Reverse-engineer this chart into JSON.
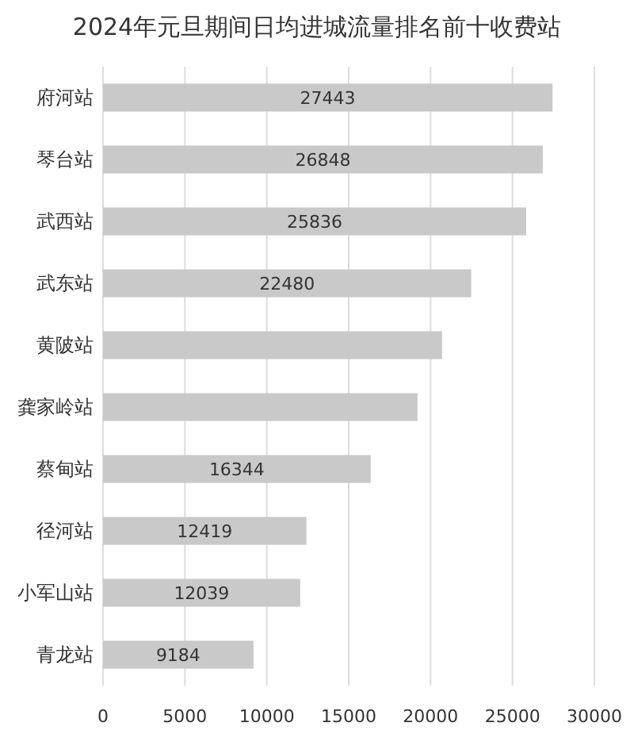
{
  "chart_data": {
    "type": "bar",
    "orientation": "horizontal",
    "title": "2024年元旦期间日均进城流量排名前十收费站",
    "categories": [
      "府河站",
      "琴台站",
      "武西站",
      "武东站",
      "黄陂站",
      "龚家岭站",
      "蔡甸站",
      "径河站",
      "小军山站",
      "青龙站"
    ],
    "values": [
      27443,
      26848,
      25836,
      22480,
      20700,
      19200,
      16344,
      12419,
      12039,
      9184
    ],
    "value_labels": [
      "27443",
      "26848",
      "25836",
      "22480",
      null,
      null,
      "16344",
      "12419",
      "12039",
      "9184"
    ],
    "color": "#c9c9c9",
    "xlim": [
      0,
      30000
    ],
    "xticks": [
      0,
      5000,
      10000,
      15000,
      20000,
      25000,
      30000
    ],
    "grid": "x"
  }
}
